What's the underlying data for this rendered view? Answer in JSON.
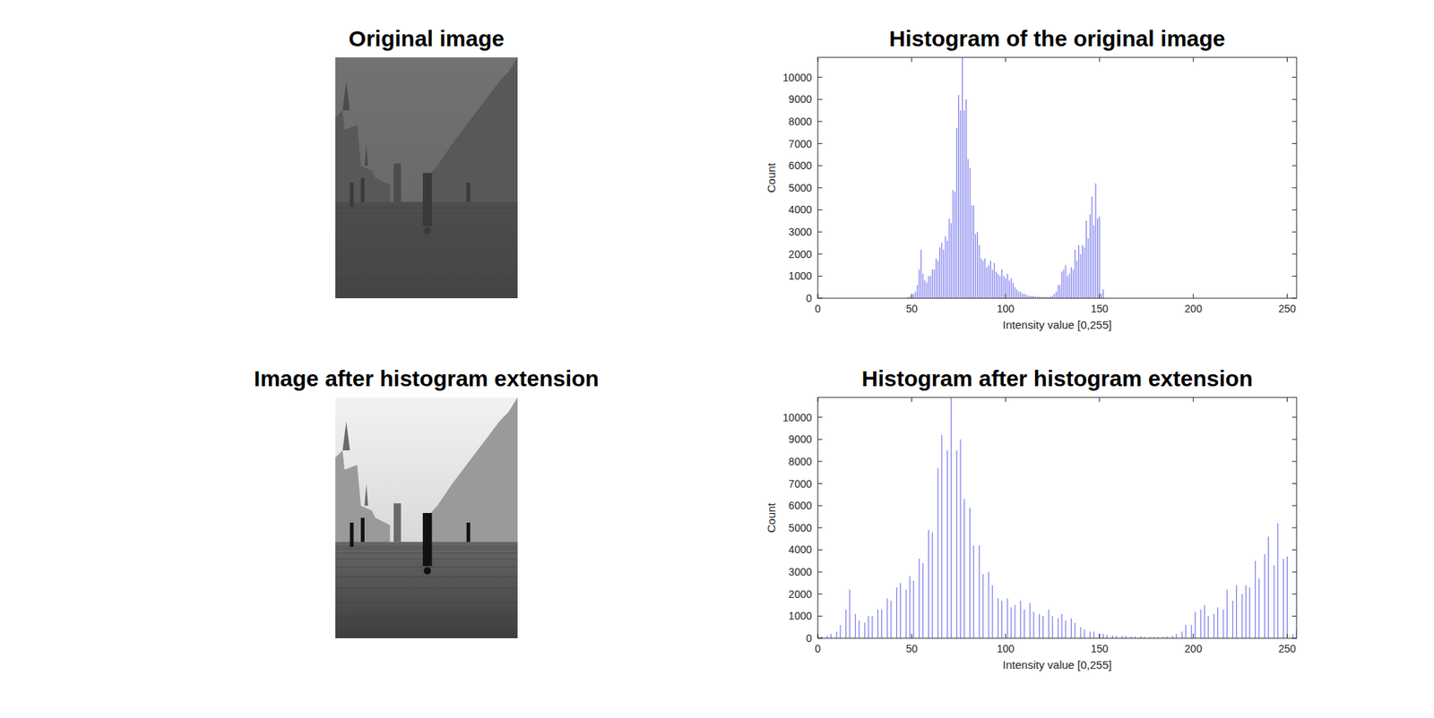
{
  "chart_data": [
    {
      "type": "image",
      "title": "Original image"
    },
    {
      "type": "bar",
      "title": "Histogram of the original image",
      "xlabel": "Intensity value [0,255]",
      "ylabel": "Count",
      "color": "#7a7aee",
      "x": [
        48,
        49,
        50,
        51,
        52,
        53,
        54,
        55,
        56,
        57,
        58,
        59,
        60,
        61,
        62,
        63,
        64,
        65,
        66,
        67,
        68,
        69,
        70,
        71,
        72,
        73,
        74,
        75,
        76,
        77,
        78,
        79,
        80,
        81,
        82,
        83,
        84,
        85,
        86,
        87,
        88,
        89,
        90,
        91,
        92,
        93,
        94,
        95,
        96,
        97,
        98,
        99,
        100,
        101,
        102,
        103,
        104,
        105,
        106,
        107,
        108,
        109,
        110,
        111,
        112,
        113,
        114,
        115,
        116,
        117,
        118,
        119,
        120,
        121,
        122,
        123,
        124,
        125,
        126,
        127,
        128,
        129,
        130,
        131,
        132,
        133,
        134,
        135,
        136,
        137,
        138,
        139,
        140,
        141,
        142,
        143,
        144,
        145,
        146,
        147,
        148,
        149,
        150,
        151,
        152
      ],
      "values": [
        50,
        80,
        100,
        200,
        300,
        600,
        1300,
        2200,
        1100,
        800,
        700,
        1000,
        1000,
        1300,
        1300,
        1800,
        1700,
        2300,
        2500,
        2200,
        2800,
        2600,
        3600,
        3400,
        4900,
        4800,
        7700,
        9200,
        8500,
        10900,
        8500,
        9000,
        6300,
        5900,
        4200,
        4200,
        2900,
        3000,
        2400,
        1800,
        1700,
        1800,
        1400,
        1500,
        1700,
        1300,
        1600,
        1200,
        1100,
        1000,
        1300,
        1000,
        900,
        1100,
        800,
        900,
        700,
        500,
        400,
        300,
        300,
        200,
        200,
        150,
        120,
        100,
        100,
        100,
        80,
        80,
        80,
        60,
        60,
        60,
        60,
        60,
        80,
        100,
        200,
        300,
        600,
        600,
        1200,
        1300,
        1500,
        1000,
        1100,
        1400,
        1300,
        2200,
        1700,
        2400,
        2000,
        2400,
        2300,
        3500,
        2700,
        3800,
        4600,
        3300,
        5200,
        3600,
        3700,
        200,
        400
      ],
      "xlim": [
        0,
        255
      ],
      "ylim": [
        0,
        10900
      ],
      "xticks": [
        0,
        50,
        100,
        150,
        200,
        250
      ],
      "yticks": [
        0,
        1000,
        2000,
        3000,
        4000,
        5000,
        6000,
        7000,
        8000,
        9000,
        10000
      ]
    },
    {
      "type": "image",
      "title": "Image after histogram extension"
    },
    {
      "type": "bar",
      "title": "Histogram after histogram extension",
      "xlabel": "Intensity value [0,255]",
      "ylabel": "Count",
      "color": "#7a7aee",
      "x": [
        0,
        2,
        5,
        7,
        10,
        12,
        15,
        17,
        20,
        22,
        25,
        27,
        29,
        32,
        34,
        37,
        39,
        42,
        44,
        47,
        49,
        51,
        54,
        56,
        59,
        61,
        64,
        66,
        69,
        71,
        74,
        76,
        78,
        81,
        83,
        86,
        88,
        91,
        93,
        96,
        98,
        101,
        103,
        105,
        108,
        110,
        113,
        115,
        118,
        120,
        123,
        125,
        128,
        130,
        132,
        135,
        137,
        140,
        142,
        145,
        147,
        150,
        152,
        154,
        157,
        159,
        162,
        164,
        167,
        169,
        172,
        174,
        177,
        179,
        181,
        184,
        186,
        189,
        191,
        194,
        196,
        199,
        201,
        204,
        206,
        208,
        211,
        213,
        216,
        218,
        221,
        223,
        226,
        228,
        230,
        233,
        235,
        238,
        240,
        243,
        245,
        248,
        250,
        253,
        255
      ],
      "values": [
        50,
        80,
        100,
        200,
        300,
        600,
        1300,
        2200,
        1100,
        800,
        700,
        1000,
        1000,
        1300,
        1300,
        1800,
        1700,
        2300,
        2500,
        2200,
        2800,
        2600,
        3600,
        3400,
        4900,
        4800,
        7700,
        9200,
        8500,
        10900,
        8500,
        9000,
        6300,
        5900,
        4200,
        4200,
        2900,
        3000,
        2400,
        1800,
        1700,
        1800,
        1400,
        1500,
        1700,
        1300,
        1600,
        1200,
        1100,
        1000,
        1300,
        1000,
        900,
        1100,
        800,
        900,
        700,
        500,
        400,
        300,
        300,
        200,
        200,
        150,
        120,
        100,
        100,
        100,
        80,
        80,
        80,
        60,
        60,
        60,
        60,
        60,
        80,
        100,
        200,
        300,
        600,
        600,
        1200,
        1300,
        1500,
        1000,
        1100,
        1400,
        1300,
        2200,
        1700,
        2400,
        2000,
        2400,
        2300,
        3500,
        2700,
        3800,
        4600,
        3300,
        5200,
        3600,
        3700,
        200,
        400
      ],
      "xlim": [
        0,
        255
      ],
      "ylim": [
        0,
        10900
      ],
      "xticks": [
        0,
        50,
        100,
        150,
        200,
        250
      ],
      "yticks": [
        0,
        1000,
        2000,
        3000,
        4000,
        5000,
        6000,
        7000,
        8000,
        9000,
        10000
      ]
    }
  ]
}
